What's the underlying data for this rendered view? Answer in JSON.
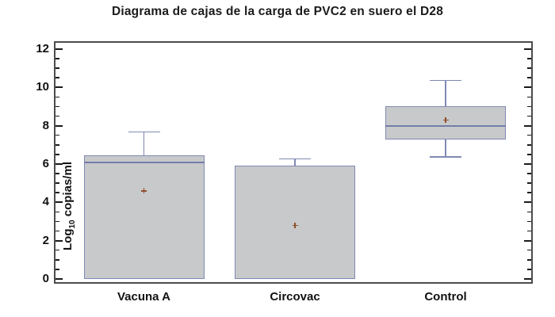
{
  "title": "Diagrama de cajas de la carga de PVC2 en suero el D28",
  "chart_data": {
    "type": "boxplot",
    "title": "Diagrama de cajas de la carga de PVC2 en suero el D28",
    "ylabel": "Log10 copias/ml",
    "ylabel_parts": {
      "prefix": "Log",
      "subscript": "10",
      "suffix": " copias/ml"
    },
    "xlabel": "",
    "ylim": [
      0,
      12
    ],
    "yticks": [
      0,
      2,
      4,
      6,
      8,
      10,
      12
    ],
    "minor_ytick_step": 0.5,
    "grid": false,
    "legend": "none",
    "categories": [
      "Vacuna A",
      "Circovac",
      "Control"
    ],
    "series": [
      {
        "name": "Vacuna A",
        "whisker_low": 0,
        "q1": 0,
        "median": 6.1,
        "q3": 6.45,
        "whisker_high": 7.7,
        "mean": 4.6
      },
      {
        "name": "Circovac",
        "whisker_low": 0,
        "q1": 0,
        "median": 0,
        "q3": 5.9,
        "whisker_high": 6.3,
        "mean": 2.8
      },
      {
        "name": "Control",
        "whisker_low": 6.4,
        "q1": 7.3,
        "median": 8.0,
        "q3": 9.0,
        "whisker_high": 10.4,
        "mean": 8.3
      }
    ],
    "colors": {
      "background": "#ffffff",
      "frame": "#4c4c4c",
      "tick": "#1a1a1a",
      "text": "#111111",
      "box_fill": "#c8c9cb",
      "box_border": "#8089b2",
      "median_line": "#727da9",
      "mean_marker": "#8f4f2b"
    }
  }
}
